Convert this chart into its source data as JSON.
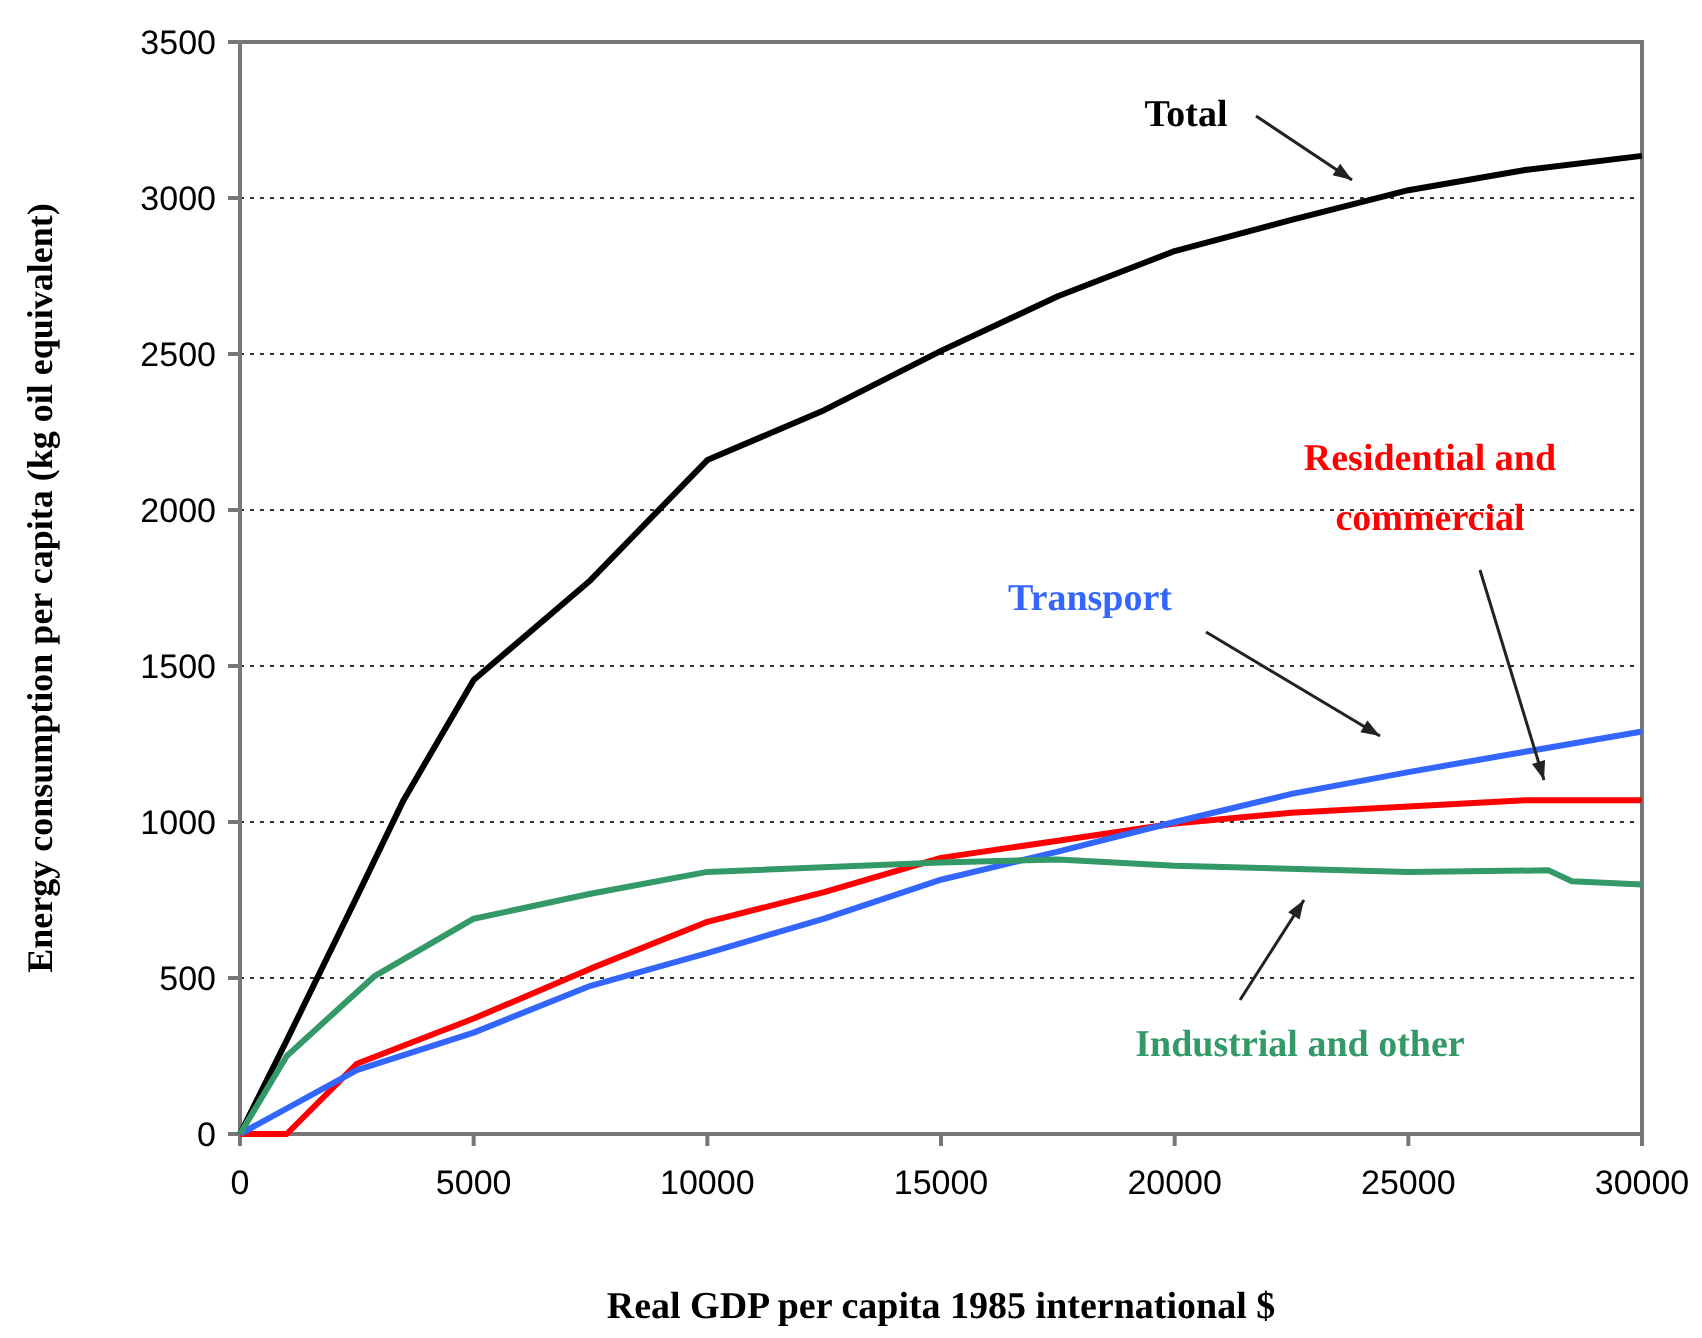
{
  "chart_data": {
    "type": "line",
    "xlabel": "Real GDP per capita 1985 international $",
    "ylabel": "Energy consumption per capita (kg oil  equivalent)",
    "xlim": [
      0,
      30000
    ],
    "xticks": [
      0,
      5000,
      10000,
      15000,
      20000,
      25000,
      30000
    ],
    "ylim": [
      0,
      3500
    ],
    "yticks": [
      0,
      500,
      1000,
      1500,
      2000,
      2500,
      3000,
      3500
    ],
    "grid": "y",
    "line_style": "solid",
    "marker": "none",
    "series": [
      {
        "name": "Total",
        "color": "#000000",
        "x": [
          0,
          1000,
          2500,
          3500,
          5000,
          7500,
          10000,
          12500,
          15000,
          17500,
          20000,
          22500,
          25000,
          27500,
          30000
        ],
        "values": [
          0,
          300,
          760,
          1070,
          1455,
          1775,
          2160,
          2320,
          2510,
          2685,
          2830,
          2930,
          3025,
          3090,
          3135
        ]
      },
      {
        "name": "Residential and commercial",
        "color": "#ff0000",
        "x": [
          0,
          1000,
          2500,
          5000,
          7500,
          10000,
          12500,
          15000,
          17500,
          20000,
          22500,
          25000,
          27500,
          30000
        ],
        "values": [
          0,
          0,
          225,
          370,
          530,
          680,
          775,
          885,
          940,
          995,
          1030,
          1050,
          1070,
          1070
        ]
      },
      {
        "name": "Transport",
        "color": "#3366ff",
        "x": [
          0,
          2500,
          5000,
          7500,
          10000,
          12500,
          15000,
          17500,
          20000,
          22500,
          25000,
          27500,
          30000
        ],
        "values": [
          0,
          205,
          325,
          475,
          580,
          690,
          815,
          905,
          1000,
          1090,
          1160,
          1225,
          1290
        ]
      },
      {
        "name": "Industrial and other",
        "color": "#339966",
        "x": [
          0,
          1000,
          2870,
          5000,
          7500,
          10000,
          15000,
          17500,
          20000,
          25000,
          28000,
          28500,
          30000
        ],
        "values": [
          0,
          250,
          505,
          690,
          770,
          840,
          870,
          880,
          860,
          840,
          845,
          810,
          800
        ]
      }
    ]
  }
}
